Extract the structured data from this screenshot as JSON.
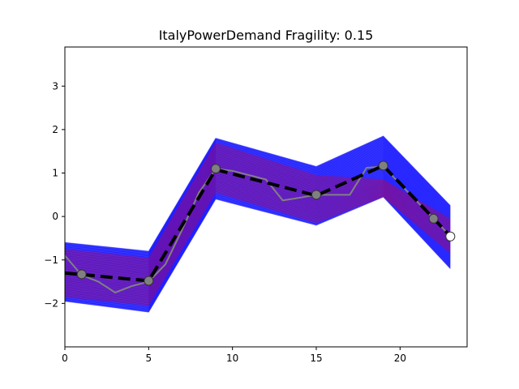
{
  "chart_data": {
    "type": "line",
    "title": "ItalyPowerDemand Fragility: 0.15",
    "xlabel": "",
    "ylabel": "",
    "xlim": [
      0,
      24
    ],
    "ylim": [
      -3,
      3.9
    ],
    "xticks": [
      0,
      5,
      10,
      15,
      20
    ],
    "yticks": [
      3,
      2,
      1,
      0,
      -1,
      -2
    ],
    "ytick_labels": [
      "3",
      "2",
      "1",
      "0",
      "−1",
      "−2"
    ],
    "grid": false,
    "legend": "none",
    "bands": [
      {
        "color": "#0000ff",
        "x": [
          0,
          5,
          9,
          15,
          19,
          23
        ],
        "upper": [
          -0.6,
          -0.8,
          1.8,
          1.15,
          1.85,
          0.25
        ],
        "lower": [
          -1.95,
          -2.2,
          0.4,
          -0.2,
          0.45,
          -1.2
        ]
      },
      {
        "color": "#cc0044",
        "x": [
          0,
          5,
          9,
          15,
          19,
          23
        ],
        "upper": [
          -0.75,
          -0.95,
          1.7,
          0.95,
          0.85,
          -0.05
        ],
        "lower": [
          -1.85,
          -2.05,
          0.55,
          -0.15,
          0.45,
          -0.85
        ]
      }
    ],
    "series": [
      {
        "style": "solid-gray",
        "color": "#808080",
        "x": [
          0,
          1,
          2,
          3,
          4,
          5,
          6,
          7,
          8,
          9,
          10,
          11,
          12,
          13,
          14,
          15,
          16,
          17,
          18,
          19,
          20,
          21,
          22,
          23
        ],
        "y": [
          -0.9,
          -1.35,
          -1.5,
          -1.75,
          -1.6,
          -1.5,
          -1.1,
          -0.3,
          0.55,
          1.1,
          1.05,
          0.95,
          0.85,
          0.37,
          0.43,
          0.5,
          0.5,
          0.5,
          1.12,
          1.15,
          0.75,
          0.35,
          -0.05,
          -0.45
        ]
      },
      {
        "style": "dashed-black",
        "color": "#000000",
        "x": [
          0,
          5,
          9,
          15,
          19,
          23
        ],
        "y": [
          -1.3,
          -1.48,
          1.08,
          0.48,
          1.17,
          -0.45
        ]
      }
    ],
    "markers": [
      {
        "x": 1,
        "y": -1.33,
        "fill": "#808080"
      },
      {
        "x": 5,
        "y": -1.48,
        "fill": "#808080"
      },
      {
        "x": 9,
        "y": 1.1,
        "fill": "#808080"
      },
      {
        "x": 15,
        "y": 0.5,
        "fill": "#808080"
      },
      {
        "x": 19,
        "y": 1.17,
        "fill": "#808080"
      },
      {
        "x": 22,
        "y": -0.05,
        "fill": "#808080"
      },
      {
        "x": 23,
        "y": -0.46,
        "fill": "#ffffff"
      }
    ]
  }
}
